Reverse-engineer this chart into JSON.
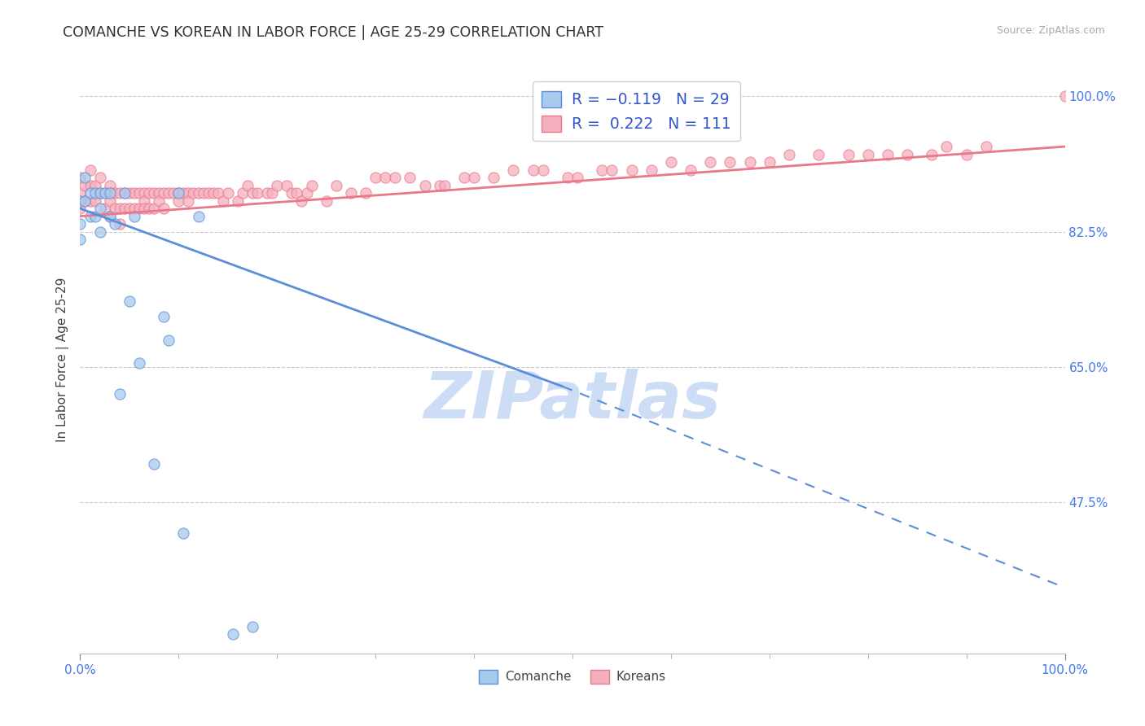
{
  "title": "COMANCHE VS KOREAN IN LABOR FORCE | AGE 25-29 CORRELATION CHART",
  "source_text": "Source: ZipAtlas.com",
  "ylabel": "In Labor Force | Age 25-29",
  "xlim": [
    0.0,
    1.0
  ],
  "ylim": [
    0.28,
    1.04
  ],
  "yticks": [
    0.475,
    0.65,
    0.825,
    1.0
  ],
  "ytick_labels": [
    "47.5%",
    "65.0%",
    "82.5%",
    "100.0%"
  ],
  "xtick_labels": [
    "0.0%",
    "100.0%"
  ],
  "xticks": [
    0.0,
    1.0
  ],
  "comanche_color": "#a8caed",
  "korean_color": "#f5b0be",
  "trend_comanche_color": "#5b8dd9",
  "trend_korean_color": "#e8788a",
  "watermark": "ZIPatlas",
  "watermark_color": "#ccddf5",
  "background_color": "#ffffff",
  "korean_trend_x0": 0.0,
  "korean_trend_y0": 0.845,
  "korean_trend_x1": 1.0,
  "korean_trend_y1": 0.935,
  "comanche_trend_solid_x0": 0.0,
  "comanche_trend_solid_y0": 0.855,
  "comanche_trend_solid_x1": 0.49,
  "comanche_trend_solid_y1": 0.625,
  "comanche_trend_dashed_x0": 0.49,
  "comanche_trend_dashed_y0": 0.625,
  "comanche_trend_dashed_x1": 1.0,
  "comanche_trend_dashed_y1": 0.365,
  "comanche_points_x": [
    0.0,
    0.0,
    0.0,
    0.005,
    0.005,
    0.01,
    0.01,
    0.015,
    0.015,
    0.02,
    0.02,
    0.02,
    0.025,
    0.03,
    0.03,
    0.035,
    0.04,
    0.045,
    0.05,
    0.055,
    0.06,
    0.075,
    0.085,
    0.09,
    0.1,
    0.105,
    0.12,
    0.155,
    0.175
  ],
  "comanche_points_y": [
    0.865,
    0.835,
    0.815,
    0.895,
    0.865,
    0.875,
    0.845,
    0.875,
    0.845,
    0.875,
    0.855,
    0.825,
    0.875,
    0.875,
    0.845,
    0.835,
    0.615,
    0.875,
    0.735,
    0.845,
    0.655,
    0.525,
    0.715,
    0.685,
    0.875,
    0.435,
    0.845,
    0.305,
    0.315
  ],
  "korean_points_x": [
    0.0,
    0.0,
    0.0,
    0.005,
    0.005,
    0.01,
    0.01,
    0.01,
    0.015,
    0.015,
    0.02,
    0.02,
    0.025,
    0.025,
    0.03,
    0.03,
    0.03,
    0.03,
    0.035,
    0.035,
    0.04,
    0.04,
    0.04,
    0.045,
    0.045,
    0.05,
    0.05,
    0.055,
    0.055,
    0.06,
    0.06,
    0.065,
    0.065,
    0.065,
    0.07,
    0.07,
    0.075,
    0.075,
    0.08,
    0.08,
    0.085,
    0.085,
    0.09,
    0.095,
    0.1,
    0.1,
    0.105,
    0.11,
    0.11,
    0.115,
    0.12,
    0.125,
    0.13,
    0.135,
    0.14,
    0.145,
    0.15,
    0.16,
    0.165,
    0.17,
    0.175,
    0.18,
    0.19,
    0.195,
    0.2,
    0.21,
    0.215,
    0.22,
    0.225,
    0.23,
    0.235,
    0.25,
    0.26,
    0.275,
    0.29,
    0.3,
    0.31,
    0.32,
    0.335,
    0.35,
    0.365,
    0.37,
    0.39,
    0.4,
    0.42,
    0.44,
    0.46,
    0.47,
    0.495,
    0.505,
    0.53,
    0.54,
    0.56,
    0.58,
    0.6,
    0.62,
    0.64,
    0.66,
    0.68,
    0.7,
    0.72,
    0.75,
    0.78,
    0.8,
    0.82,
    0.84,
    0.865,
    0.88,
    0.9,
    0.92,
    1.0
  ],
  "korean_points_y": [
    0.895,
    0.875,
    0.855,
    0.885,
    0.865,
    0.905,
    0.885,
    0.865,
    0.885,
    0.865,
    0.895,
    0.875,
    0.875,
    0.855,
    0.885,
    0.875,
    0.865,
    0.845,
    0.875,
    0.855,
    0.875,
    0.855,
    0.835,
    0.875,
    0.855,
    0.875,
    0.855,
    0.875,
    0.855,
    0.875,
    0.855,
    0.875,
    0.865,
    0.855,
    0.875,
    0.855,
    0.875,
    0.855,
    0.875,
    0.865,
    0.875,
    0.855,
    0.875,
    0.875,
    0.875,
    0.865,
    0.875,
    0.875,
    0.865,
    0.875,
    0.875,
    0.875,
    0.875,
    0.875,
    0.875,
    0.865,
    0.875,
    0.865,
    0.875,
    0.885,
    0.875,
    0.875,
    0.875,
    0.875,
    0.885,
    0.885,
    0.875,
    0.875,
    0.865,
    0.875,
    0.885,
    0.865,
    0.885,
    0.875,
    0.875,
    0.895,
    0.895,
    0.895,
    0.895,
    0.885,
    0.885,
    0.885,
    0.895,
    0.895,
    0.895,
    0.905,
    0.905,
    0.905,
    0.895,
    0.895,
    0.905,
    0.905,
    0.905,
    0.905,
    0.915,
    0.905,
    0.915,
    0.915,
    0.915,
    0.915,
    0.925,
    0.925,
    0.925,
    0.925,
    0.925,
    0.925,
    0.925,
    0.935,
    0.925,
    0.935,
    1.0
  ]
}
